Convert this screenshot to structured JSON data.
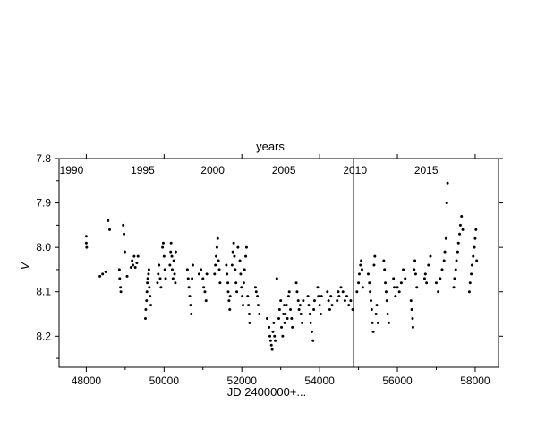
{
  "chart_data": {
    "type": "scatter",
    "top_axis_title": "years",
    "xlabel": "JD 2400000+...",
    "ylabel": "V",
    "xlim": [
      47300,
      58600
    ],
    "ylim": [
      8.27,
      7.8
    ],
    "y_inverted": true,
    "x_ticks": [
      48000,
      50000,
      52000,
      54000,
      56000,
      58000
    ],
    "x_tick_labels": [
      "48000",
      "50000",
      "52000",
      "54000",
      "56000",
      "58000"
    ],
    "y_ticks": [
      7.8,
      7.9,
      8.0,
      8.1,
      8.2
    ],
    "y_tick_labels": [
      "7.8",
      "7.9",
      "8.0",
      "8.1",
      "8.2"
    ],
    "year_labels": [
      {
        "text": "1990",
        "x": 47620
      },
      {
        "text": "1995",
        "x": 49450
      },
      {
        "text": "2000",
        "x": 51250
      },
      {
        "text": "2005",
        "x": 53080
      },
      {
        "text": "2010",
        "x": 54910
      },
      {
        "text": "2015",
        "x": 56740
      }
    ],
    "vertical_line_x": 54870,
    "grid": false,
    "marker_color": "#000000",
    "series": [
      {
        "values": [
          [
            48000,
            7.975
          ],
          [
            48000,
            7.99
          ],
          [
            48010,
            8.0
          ],
          [
            48350,
            8.065
          ],
          [
            48420,
            8.06
          ],
          [
            48500,
            8.055
          ],
          [
            48560,
            7.94
          ],
          [
            48600,
            7.96
          ],
          [
            48850,
            8.05
          ],
          [
            48860,
            8.07
          ],
          [
            48880,
            8.09
          ],
          [
            48890,
            8.1
          ],
          [
            48950,
            7.95
          ],
          [
            48970,
            7.97
          ],
          [
            48990,
            8.01
          ],
          [
            49050,
            8.065
          ],
          [
            49150,
            8.045
          ],
          [
            49180,
            8.03
          ],
          [
            49200,
            8.04
          ],
          [
            49230,
            8.02
          ],
          [
            49260,
            8.045
          ],
          [
            49300,
            8.035
          ],
          [
            49330,
            8.02
          ],
          [
            49520,
            8.16
          ],
          [
            49530,
            8.14
          ],
          [
            49550,
            8.12
          ],
          [
            49560,
            8.1
          ],
          [
            49570,
            8.08
          ],
          [
            49580,
            8.07
          ],
          [
            49600,
            8.06
          ],
          [
            49610,
            8.05
          ],
          [
            49620,
            8.09
          ],
          [
            49640,
            8.11
          ],
          [
            49660,
            8.13
          ],
          [
            49830,
            8.08
          ],
          [
            49850,
            8.06
          ],
          [
            49870,
            8.04
          ],
          [
            49900,
            8.07
          ],
          [
            49920,
            8.09
          ],
          [
            49960,
            8.0
          ],
          [
            49980,
            7.99
          ],
          [
            50000,
            8.02
          ],
          [
            50020,
            8.05
          ],
          [
            50040,
            8.07
          ],
          [
            50150,
            8.04
          ],
          [
            50170,
            8.01
          ],
          [
            50180,
            7.99
          ],
          [
            50200,
            8.02
          ],
          [
            50210,
            8.05
          ],
          [
            50230,
            8.07
          ],
          [
            50250,
            8.03
          ],
          [
            50270,
            8.06
          ],
          [
            50290,
            8.08
          ],
          [
            50300,
            8.01
          ],
          [
            50600,
            8.05
          ],
          [
            50620,
            8.07
          ],
          [
            50640,
            8.09
          ],
          [
            50660,
            8.11
          ],
          [
            50680,
            8.13
          ],
          [
            50700,
            8.15
          ],
          [
            50720,
            8.07
          ],
          [
            50740,
            8.04
          ],
          [
            50900,
            8.06
          ],
          [
            50950,
            8.05
          ],
          [
            51000,
            8.07
          ],
          [
            51020,
            8.09
          ],
          [
            51050,
            8.1
          ],
          [
            51080,
            8.12
          ],
          [
            51100,
            8.06
          ],
          [
            51300,
            8.06
          ],
          [
            51320,
            8.04
          ],
          [
            51340,
            8.02
          ],
          [
            51360,
            8.0
          ],
          [
            51380,
            7.98
          ],
          [
            51400,
            8.03
          ],
          [
            51420,
            8.05
          ],
          [
            51440,
            8.08
          ],
          [
            51600,
            8.04
          ],
          [
            51620,
            8.06
          ],
          [
            51640,
            8.08
          ],
          [
            51650,
            8.1
          ],
          [
            51670,
            8.12
          ],
          [
            51690,
            8.14
          ],
          [
            51700,
            8.11
          ],
          [
            51750,
            8.04
          ],
          [
            51770,
            8.01
          ],
          [
            51790,
            7.99
          ],
          [
            51810,
            8.02
          ],
          [
            51830,
            8.05
          ],
          [
            51850,
            8.08
          ],
          [
            51870,
            8.1
          ],
          [
            51900,
            8.0
          ],
          [
            51950,
            8.03
          ],
          [
            51970,
            8.06
          ],
          [
            51990,
            8.09
          ],
          [
            52010,
            8.11
          ],
          [
            52030,
            8.13
          ],
          [
            52050,
            8.08
          ],
          [
            52070,
            8.05
          ],
          [
            52100,
            8.02
          ],
          [
            52120,
            8.0
          ],
          [
            52150,
            8.11
          ],
          [
            52170,
            8.13
          ],
          [
            52190,
            8.15
          ],
          [
            52200,
            8.17
          ],
          [
            52350,
            8.09
          ],
          [
            52370,
            8.1
          ],
          [
            52400,
            8.11
          ],
          [
            52420,
            8.13
          ],
          [
            52450,
            8.15
          ],
          [
            52650,
            8.16
          ],
          [
            52700,
            8.18
          ],
          [
            52720,
            8.2
          ],
          [
            52740,
            8.21
          ],
          [
            52760,
            8.22
          ],
          [
            52780,
            8.23
          ],
          [
            52800,
            8.19
          ],
          [
            52820,
            8.17
          ],
          [
            52840,
            8.2
          ],
          [
            52860,
            8.21
          ],
          [
            52900,
            8.07
          ],
          [
            52950,
            8.16
          ],
          [
            52970,
            8.14
          ],
          [
            53000,
            8.12
          ],
          [
            53020,
            8.18
          ],
          [
            53050,
            8.2
          ],
          [
            53070,
            8.15
          ],
          [
            53090,
            8.13
          ],
          [
            53100,
            8.17
          ],
          [
            53120,
            8.15
          ],
          [
            53150,
            8.13
          ],
          [
            53170,
            8.16
          ],
          [
            53200,
            8.11
          ],
          [
            53220,
            8.1
          ],
          [
            53250,
            8.14
          ],
          [
            53280,
            8.16
          ],
          [
            53300,
            8.18
          ],
          [
            53400,
            8.08
          ],
          [
            53420,
            8.1
          ],
          [
            53450,
            8.12
          ],
          [
            53470,
            8.14
          ],
          [
            53500,
            8.13
          ],
          [
            53520,
            8.15
          ],
          [
            53550,
            8.17
          ],
          [
            53580,
            8.12
          ],
          [
            53700,
            8.11
          ],
          [
            53720,
            8.13
          ],
          [
            53750,
            8.15
          ],
          [
            53770,
            8.17
          ],
          [
            53800,
            8.19
          ],
          [
            53830,
            8.21
          ],
          [
            53850,
            8.14
          ],
          [
            53870,
            8.12
          ],
          [
            53950,
            8.09
          ],
          [
            53970,
            8.11
          ],
          [
            54000,
            8.13
          ],
          [
            54030,
            8.15
          ],
          [
            54050,
            8.11
          ],
          [
            54200,
            8.1
          ],
          [
            54230,
            8.12
          ],
          [
            54260,
            8.14
          ],
          [
            54290,
            8.11
          ],
          [
            54320,
            8.13
          ],
          [
            54450,
            8.12
          ],
          [
            54480,
            8.1
          ],
          [
            54500,
            8.11
          ],
          [
            54550,
            8.09
          ],
          [
            54600,
            8.1
          ],
          [
            54650,
            8.12
          ],
          [
            54700,
            8.11
          ],
          [
            54750,
            8.13
          ],
          [
            54800,
            8.12
          ],
          [
            54850,
            8.14
          ],
          [
            54960,
            8.1
          ],
          [
            55000,
            8.08
          ],
          [
            55020,
            8.06
          ],
          [
            55050,
            8.04
          ],
          [
            55070,
            8.03
          ],
          [
            55090,
            8.05
          ],
          [
            55110,
            8.09
          ],
          [
            55250,
            8.06
          ],
          [
            55280,
            8.08
          ],
          [
            55300,
            8.1
          ],
          [
            55320,
            8.12
          ],
          [
            55340,
            8.14
          ],
          [
            55360,
            8.17
          ],
          [
            55380,
            8.19
          ],
          [
            55400,
            8.04
          ],
          [
            55420,
            8.02
          ],
          [
            55450,
            8.15
          ],
          [
            55470,
            8.13
          ],
          [
            55500,
            8.17
          ],
          [
            55650,
            8.03
          ],
          [
            55670,
            8.05
          ],
          [
            55690,
            8.08
          ],
          [
            55710,
            8.1
          ],
          [
            55730,
            8.12
          ],
          [
            55750,
            8.15
          ],
          [
            55780,
            8.17
          ],
          [
            55900,
            8.07
          ],
          [
            55920,
            8.09
          ],
          [
            55950,
            8.11
          ],
          [
            56000,
            8.09
          ],
          [
            56050,
            8.1
          ],
          [
            56100,
            8.08
          ],
          [
            56150,
            8.05
          ],
          [
            56200,
            8.07
          ],
          [
            56350,
            8.12
          ],
          [
            56370,
            8.14
          ],
          [
            56390,
            8.16
          ],
          [
            56400,
            8.18
          ],
          [
            56430,
            8.05
          ],
          [
            56450,
            8.03
          ],
          [
            56470,
            8.06
          ],
          [
            56500,
            8.09
          ],
          [
            56700,
            8.07
          ],
          [
            56720,
            8.06
          ],
          [
            56750,
            8.08
          ],
          [
            56800,
            8.04
          ],
          [
            56850,
            8.02
          ],
          [
            57000,
            8.08
          ],
          [
            57050,
            8.1
          ],
          [
            57100,
            8.07
          ],
          [
            57150,
            8.05
          ],
          [
            57200,
            8.03
          ],
          [
            57220,
            8.01
          ],
          [
            57250,
            7.98
          ],
          [
            57270,
            7.9
          ],
          [
            57290,
            7.855
          ],
          [
            57450,
            8.09
          ],
          [
            57470,
            8.07
          ],
          [
            57500,
            8.05
          ],
          [
            57520,
            8.03
          ],
          [
            57550,
            8.01
          ],
          [
            57570,
            7.99
          ],
          [
            57600,
            7.97
          ],
          [
            57620,
            7.95
          ],
          [
            57650,
            7.93
          ],
          [
            57680,
            7.96
          ],
          [
            57850,
            8.1
          ],
          [
            57870,
            8.08
          ],
          [
            57900,
            8.06
          ],
          [
            57920,
            8.04
          ],
          [
            57950,
            8.02
          ],
          [
            57980,
            8.0
          ],
          [
            58000,
            7.98
          ],
          [
            58020,
            7.96
          ],
          [
            58040,
            8.03
          ]
        ]
      }
    ]
  }
}
